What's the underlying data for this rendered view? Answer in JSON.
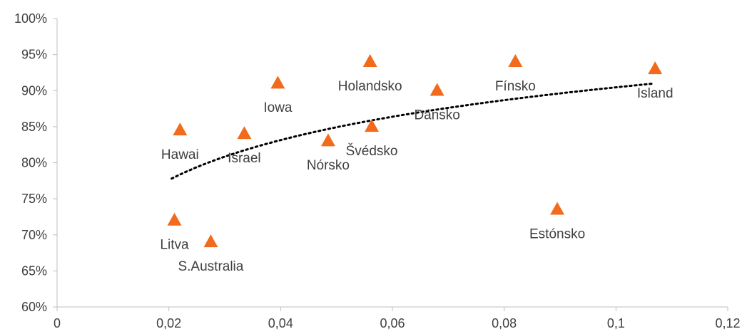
{
  "chart_data": {
    "type": "scatter",
    "xlim": [
      0,
      0.12
    ],
    "ylim": [
      60,
      100
    ],
    "x_ticks": [
      {
        "value": 0,
        "label": "0"
      },
      {
        "value": 0.02,
        "label": "0,02"
      },
      {
        "value": 0.04,
        "label": "0,04"
      },
      {
        "value": 0.06,
        "label": "0,06"
      },
      {
        "value": 0.08,
        "label": "0,08"
      },
      {
        "value": 0.1,
        "label": "0,1"
      },
      {
        "value": 0.12,
        "label": "0,12"
      }
    ],
    "y_ticks": [
      {
        "value": 60,
        "label": "60%"
      },
      {
        "value": 65,
        "label": "65%"
      },
      {
        "value": 70,
        "label": "70%"
      },
      {
        "value": 75,
        "label": "75%"
      },
      {
        "value": 80,
        "label": "80%"
      },
      {
        "value": 85,
        "label": "85%"
      },
      {
        "value": 90,
        "label": "90%"
      },
      {
        "value": 95,
        "label": "95%"
      },
      {
        "value": 100,
        "label": "100%"
      }
    ],
    "grid": false,
    "marker": "triangle",
    "marker_color": "#F26B1D",
    "points": [
      {
        "label": "Hawai",
        "x": 0.022,
        "y": 84.5,
        "label_pos": "below"
      },
      {
        "label": "Litva",
        "x": 0.021,
        "y": 72.0,
        "label_pos": "below"
      },
      {
        "label": "S.Australia",
        "x": 0.0275,
        "y": 69.0,
        "label_pos": "below"
      },
      {
        "label": "Israel",
        "x": 0.0335,
        "y": 84.0,
        "label_pos": "below"
      },
      {
        "label": "Iowa",
        "x": 0.0395,
        "y": 91.0,
        "label_pos": "below"
      },
      {
        "label": "Nórsko",
        "x": 0.0485,
        "y": 83.0,
        "label_pos": "below"
      },
      {
        "label": "Holandsko",
        "x": 0.056,
        "y": 94.0,
        "label_pos": "below"
      },
      {
        "label": "Švédsko",
        "x": 0.0563,
        "y": 85.0,
        "label_pos": "below"
      },
      {
        "label": "Dánsko",
        "x": 0.068,
        "y": 90.0,
        "label_pos": "below"
      },
      {
        "label": "Fínsko",
        "x": 0.082,
        "y": 94.0,
        "label_pos": "below"
      },
      {
        "label": "Estónsko",
        "x": 0.0895,
        "y": 73.5,
        "label_pos": "below"
      },
      {
        "label": "Island",
        "x": 0.107,
        "y": 93.0,
        "label_pos": "below"
      }
    ],
    "trendline": {
      "type": "logarithmic",
      "style": "dotted",
      "color": "#000000",
      "x_range": [
        0.0205,
        0.1065
      ],
      "points": [
        [
          0.0205,
          77.8
        ],
        [
          0.107,
          91.0
        ]
      ]
    }
  }
}
